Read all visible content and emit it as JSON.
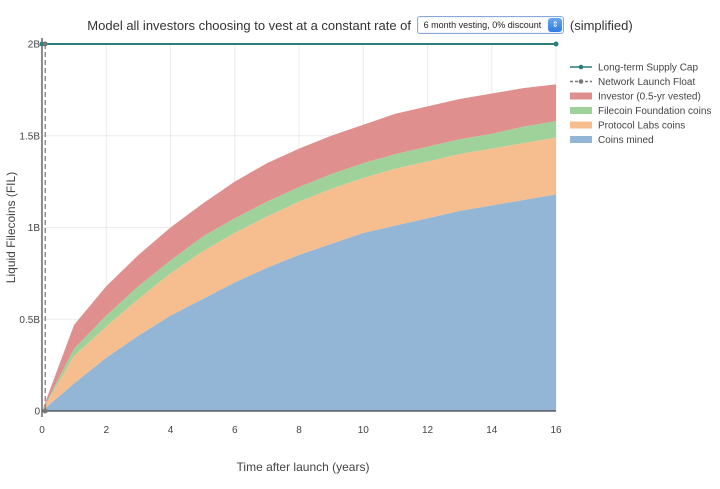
{
  "header": {
    "prefix": "Model all investors choosing to vest at a constant rate of",
    "select_value": "6 month vesting, 0% discount",
    "suffix": "(simplified)"
  },
  "chart_data": {
    "type": "area",
    "xlabel": "Time after launch (years)",
    "ylabel": "Liquid Filecoins (FIL)",
    "xlim": [
      0,
      16
    ],
    "ylim": [
      0,
      2000000000
    ],
    "x_ticks": [
      0,
      2,
      4,
      6,
      8,
      10,
      12,
      14,
      16
    ],
    "x_tick_labels": [
      "0",
      "2",
      "4",
      "6",
      "8",
      "10",
      "12",
      "14",
      "16"
    ],
    "y_ticks": [
      0,
      500000000,
      1000000000,
      1500000000,
      2000000000
    ],
    "y_tick_labels": [
      "0",
      "0.5B",
      "1B",
      "1.5B",
      "2B"
    ],
    "grid": true,
    "legend_position": "top-right",
    "x": [
      0,
      1,
      2,
      3,
      4,
      5,
      6,
      7,
      8,
      9,
      10,
      11,
      12,
      13,
      14,
      15,
      16
    ],
    "lines": [
      {
        "name": "Long-term Supply Cap",
        "color": "#2e7d7d",
        "style": "solid",
        "y": 2000000000
      },
      {
        "name": "Network Launch Float",
        "color": "#777777",
        "style": "dashed",
        "x": 0.1
      }
    ],
    "series": [
      {
        "name": "Investor (0.5-yr vested)",
        "color": "#e08f8f",
        "values": [
          0,
          470000000,
          680000000,
          850000000,
          1000000000,
          1130000000,
          1250000000,
          1350000000,
          1430000000,
          1500000000,
          1560000000,
          1620000000,
          1660000000,
          1700000000,
          1730000000,
          1760000000,
          1780000000
        ]
      },
      {
        "name": "Filecoin Foundation coins",
        "color": "#9fd19a",
        "values": [
          0,
          340000000,
          520000000,
          680000000,
          820000000,
          950000000,
          1050000000,
          1140000000,
          1220000000,
          1290000000,
          1350000000,
          1400000000,
          1440000000,
          1480000000,
          1510000000,
          1550000000,
          1580000000
        ]
      },
      {
        "name": "Protocol Labs coins",
        "color": "#f6be8e",
        "values": [
          0,
          300000000,
          460000000,
          610000000,
          750000000,
          870000000,
          970000000,
          1060000000,
          1140000000,
          1210000000,
          1270000000,
          1320000000,
          1360000000,
          1400000000,
          1430000000,
          1460000000,
          1490000000
        ]
      },
      {
        "name": "Coins mined",
        "color": "#93b6d6",
        "values": [
          0,
          150000000,
          290000000,
          410000000,
          520000000,
          610000000,
          700000000,
          780000000,
          850000000,
          910000000,
          970000000,
          1010000000,
          1050000000,
          1090000000,
          1120000000,
          1150000000,
          1180000000
        ]
      }
    ]
  }
}
